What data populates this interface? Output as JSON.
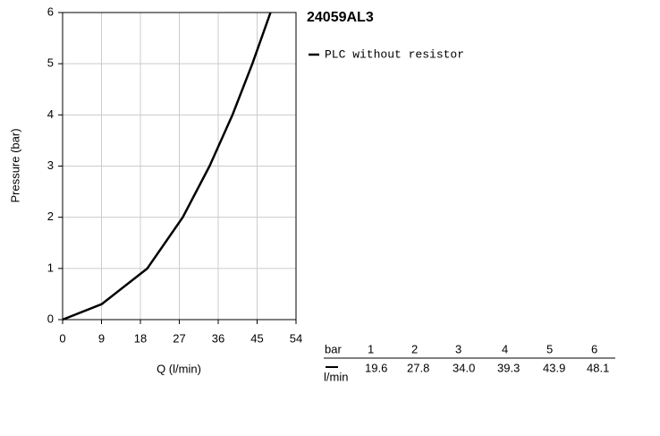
{
  "chart_data": {
    "type": "line",
    "title": "24059AL3",
    "x_label": "Q (l/min)",
    "y_label": "Pressure (bar)",
    "x": [
      0,
      9,
      19.6,
      27.8,
      34.0,
      39.3,
      43.9,
      48.1
    ],
    "series": [
      {
        "name": "PLC without resistor",
        "color": "#000000",
        "values": [
          0,
          0.3,
          1,
          2,
          3,
          4,
          5,
          6
        ]
      }
    ],
    "xlim": [
      0,
      54
    ],
    "xticks": [
      0,
      9,
      18,
      27,
      36,
      45,
      54
    ],
    "ylim": [
      0,
      6
    ],
    "yticks": [
      0,
      1,
      2,
      3,
      4,
      5,
      6
    ],
    "grid": true
  },
  "table": {
    "row_header": "bar",
    "unit": "l/min",
    "bars": [
      "1",
      "2",
      "3",
      "4",
      "5",
      "6"
    ],
    "flows": [
      "19.6",
      "27.8",
      "34.0",
      "39.3",
      "43.9",
      "48.1"
    ]
  }
}
